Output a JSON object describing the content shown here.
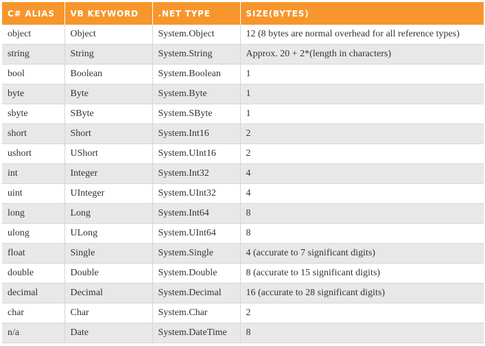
{
  "table": {
    "header": [
      "C# ALIAS",
      "VB KEYWORD",
      ".NET TYPE",
      "SIZE(BYTES)"
    ],
    "rows": [
      [
        "object",
        "Object",
        "System.Object",
        "12 (8 bytes are normal overhead for all reference types)"
      ],
      [
        "string",
        "String",
        "System.String",
        "Approx. 20 + 2*(length in characters)"
      ],
      [
        "bool",
        "Boolean",
        "System.Boolean",
        "1"
      ],
      [
        "byte",
        "Byte",
        "System.Byte",
        "1"
      ],
      [
        "sbyte",
        "SByte",
        "System.SByte",
        "1"
      ],
      [
        "short",
        "Short",
        "System.Int16",
        "2"
      ],
      [
        "ushort",
        "UShort",
        "System.UInt16",
        "2"
      ],
      [
        "int",
        "Integer",
        "System.Int32",
        "4"
      ],
      [
        "uint",
        "UInteger",
        "System.UInt32",
        "4"
      ],
      [
        "long",
        "Long",
        "System.Int64",
        "8"
      ],
      [
        "ulong",
        "ULong",
        "System.UInt64",
        "8"
      ],
      [
        "float",
        "Single",
        "System.Single",
        "4 (accurate to 7 significant digits)"
      ],
      [
        "double",
        "Double",
        "System.Double",
        "8 (accurate to 15 significant digits)"
      ],
      [
        "decimal",
        "Decimal",
        "System.Decimal",
        "16 (accurate to 28 significant digits)"
      ],
      [
        "char",
        "Char",
        "System.Char",
        "2"
      ],
      [
        "n/a",
        "Date",
        "System.DateTime",
        "8"
      ]
    ]
  }
}
